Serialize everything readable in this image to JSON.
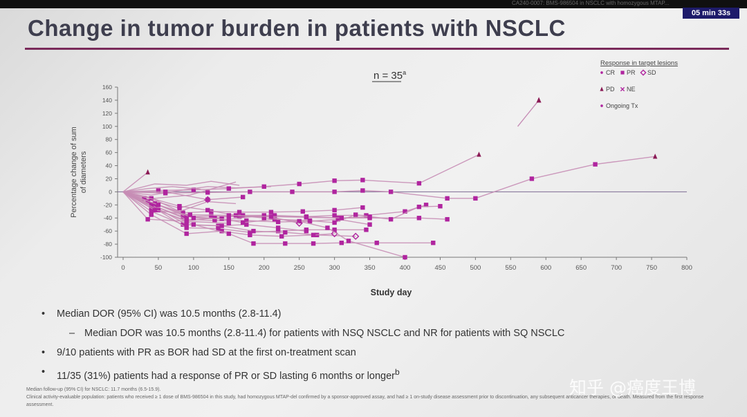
{
  "slide": {
    "header_code": "CA240-0007: BMS-986504 in NSCLC with homozygous MTAP...",
    "timer": "05 min 33s",
    "title": "Change in tumor burden in patients with NSCLC",
    "accent_color": "#7a2a5a",
    "line_color": "#c68db5",
    "marker_color": "#b0259f"
  },
  "chart_data": {
    "type": "line",
    "annotation": "n = 35",
    "annotation_sup": "a",
    "xlabel": "Study day",
    "ylabel_line1": "Percentage change of sum",
    "ylabel_line2": "of diameters",
    "xlim": [
      0,
      800
    ],
    "ylim": [
      -100,
      160
    ],
    "xticks": [
      0,
      50,
      100,
      150,
      200,
      250,
      300,
      350,
      400,
      450,
      500,
      550,
      600,
      650,
      700,
      750,
      800
    ],
    "yticks": [
      -100,
      -80,
      -60,
      -40,
      -20,
      0,
      20,
      40,
      60,
      80,
      100,
      120,
      140,
      160
    ],
    "grid": false,
    "reference_line": 0,
    "legend": {
      "position": "top-right",
      "title": "Response in target lesions",
      "entries": [
        [
          {
            "label": "CR",
            "marker": "dot"
          },
          {
            "label": "PR",
            "marker": "square"
          },
          {
            "label": "SD",
            "marker": "diamond"
          }
        ],
        [
          {
            "label": "PD",
            "marker": "triangle"
          },
          {
            "label": "NE",
            "marker": "cross"
          }
        ],
        [
          {
            "label": "Ongoing Tx",
            "marker": "dot"
          }
        ]
      ]
    },
    "series": [
      {
        "x": [
          0,
          35
        ],
        "y": [
          0,
          30
        ],
        "marker": "triangle"
      },
      {
        "x": [
          0,
          45,
          90,
          125,
          165
        ],
        "y": [
          0,
          12,
          10,
          16,
          10
        ]
      },
      {
        "x": [
          0,
          45,
          95,
          160
        ],
        "y": [
          0,
          -10,
          -5,
          15
        ]
      },
      {
        "x": [
          0,
          40,
          80,
          120,
          160,
          210
        ],
        "y": [
          0,
          -5,
          2,
          8,
          6,
          8
        ]
      },
      {
        "x": [
          0,
          50,
          100,
          150,
          200,
          250,
          300,
          340,
          420,
          505
        ],
        "y": [
          0,
          2,
          3,
          5,
          8,
          12,
          17,
          18,
          13,
          57
        ],
        "marker": "triangle"
      },
      {
        "x": [
          0,
          60,
          120,
          180,
          240,
          300,
          340,
          380,
          460,
          500,
          580,
          670,
          755
        ],
        "y": [
          0,
          -2,
          -1,
          0,
          0,
          0,
          2,
          0,
          -10,
          -10,
          20,
          42,
          54
        ],
        "marker": "triangle"
      },
      {
        "x": [
          0,
          30,
          80,
          120
        ],
        "y": [
          0,
          -10,
          -25,
          -12
        ],
        "marker": "diamond"
      },
      {
        "x": [
          0,
          35,
          85,
          125,
          165,
          210,
          255,
          300,
          340
        ],
        "y": [
          0,
          -15,
          -32,
          -30,
          -31,
          -31,
          -30,
          -28,
          -24
        ],
        "marker": "square"
      },
      {
        "x": [
          0,
          40,
          85,
          125,
          165,
          215,
          260,
          305,
          350,
          420,
          460
        ],
        "y": [
          0,
          -20,
          -38,
          -37,
          -38,
          -38,
          -39,
          -40,
          -40,
          -40,
          -42
        ],
        "marker": "square"
      },
      {
        "x": [
          0,
          40,
          90,
          130,
          170,
          215,
          260,
          300,
          345,
          400,
          430
        ],
        "y": [
          0,
          -25,
          -44,
          -40,
          -36,
          -36,
          -38,
          -36,
          -36,
          -30,
          -20
        ],
        "marker": "square"
      },
      {
        "x": [
          0,
          45,
          90,
          130,
          175,
          220,
          265,
          305,
          350
        ],
        "y": [
          0,
          -22,
          -42,
          -44,
          -44,
          -46,
          -45,
          -42,
          -50
        ],
        "marker": "square"
      },
      {
        "x": [
          0,
          40,
          85,
          135,
          175,
          220,
          260
        ],
        "y": [
          0,
          -30,
          -50,
          -52,
          -50,
          -55,
          -60
        ],
        "marker": "square"
      },
      {
        "x": [
          0,
          45,
          90,
          135,
          180,
          220,
          260,
          300,
          345
        ],
        "y": [
          0,
          -25,
          -55,
          -56,
          -62,
          -60,
          -58,
          -58,
          -58
        ],
        "marker": "square"
      },
      {
        "x": [
          0,
          40,
          90,
          140,
          185,
          230,
          275,
          330
        ],
        "y": [
          0,
          -20,
          -50,
          -52,
          -60,
          -62,
          -66,
          -68
        ],
        "marker": "diamond"
      },
      {
        "x": [
          0,
          40,
          90,
          140,
          180,
          225,
          270,
          300
        ],
        "y": [
          0,
          -35,
          -64,
          -60,
          -66,
          -68,
          -66,
          -64
        ],
        "marker": "diamond"
      },
      {
        "x": [
          0,
          50,
          100,
          150,
          185,
          230,
          270,
          310,
          360,
          440
        ],
        "y": [
          0,
          -28,
          -50,
          -64,
          -79,
          -79,
          -79,
          -78,
          -78,
          -78
        ],
        "marker": "square"
      },
      {
        "x": [
          0,
          45,
          90,
          140,
          170,
          215,
          265,
          300,
          330,
          380,
          420,
          450
        ],
        "y": [
          0,
          -18,
          -38,
          -41,
          -47,
          -42,
          -44,
          -47,
          -35,
          -42,
          -23,
          -22
        ],
        "marker": "square"
      },
      {
        "x": [
          0,
          40,
          80,
          120,
          160,
          200,
          250,
          290,
          320,
          400
        ],
        "y": [
          0,
          -10,
          -22,
          -28,
          -36,
          -40,
          -45,
          -55,
          -75,
          -100
        ],
        "marker": "square"
      },
      {
        "x": [
          0,
          45,
          80,
          120,
          160
        ],
        "y": [
          0,
          -12,
          -30,
          -15,
          -18
        ]
      },
      {
        "x": [
          0,
          35,
          90,
          150
        ],
        "y": [
          0,
          -42,
          -45,
          -48
        ],
        "marker": "square"
      },
      {
        "x": [
          0,
          50,
          100,
          150,
          200,
          250
        ],
        "y": [
          0,
          -20,
          -40,
          -42,
          -36,
          -48
        ],
        "marker": "diamond"
      },
      {
        "x": [
          0,
          60,
          120,
          170
        ],
        "y": [
          0,
          0,
          -12,
          -8
        ],
        "marker": "square"
      },
      {
        "x": [
          0,
          35,
          70,
          110
        ],
        "y": [
          0,
          5,
          8,
          4
        ]
      },
      {
        "x": [
          0,
          45,
          95,
          150,
          210,
          260,
          310,
          350
        ],
        "y": [
          0,
          -28,
          -35,
          -36,
          -38,
          -38,
          -40,
          -38
        ],
        "marker": "square"
      }
    ],
    "trend_arrows": [
      {
        "x": [
          560,
          590
        ],
        "y": [
          100,
          140
        ]
      }
    ]
  },
  "bullets": [
    {
      "text": "Median DOR (95% CI) was 10.5 months (2.8-11.4)",
      "sub": false,
      "marker": "•"
    },
    {
      "text": "Median DOR was 10.5 months (2.8-11.4) for patients with NSQ NSCLC and NR for patients with SQ NSCLC",
      "sub": true,
      "marker": "–"
    },
    {
      "text": "9/10 patients with PR as BOR had SD at the first on-treatment scan",
      "sub": false,
      "marker": "•"
    },
    {
      "text": "11/35 (31%) patients had a response of PR or SD lasting 6 months or longer",
      "sub": false,
      "marker": "•",
      "sup": "b"
    }
  ],
  "footnote": [
    "Median follow-up (95% CI) for NSCLC: 11.7 months (6.5-15.9).",
    "Clinical activity-evaluable population: patients who received ≥ 1 dose of BMS-986504 in this study, had homozygous MTAP-del confirmed by a sponsor-approved assay, and had ≥ 1 on-study disease assessment prior to discontinuation, any subsequent anticancer therapies, or death. Measured from the first response assessment."
  ],
  "watermark": "知乎 @癌度王博"
}
